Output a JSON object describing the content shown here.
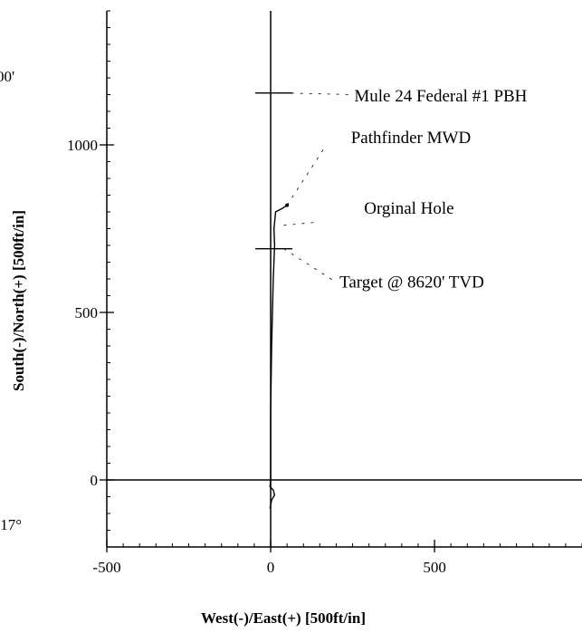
{
  "chart_data": {
    "type": "line",
    "title": "",
    "xlabel": "West(-)/East(+) [500ft/in]",
    "ylabel": "South(-)/North(+) [500ft/in]",
    "xlim": [
      -500,
      950
    ],
    "ylim": [
      -200,
      1400
    ],
    "x_ticks": [
      {
        "value": -500,
        "label": "-500"
      },
      {
        "value": 0,
        "label": "0"
      },
      {
        "value": 500,
        "label": "500"
      }
    ],
    "y_ticks": [
      {
        "value": 0,
        "label": "0"
      },
      {
        "value": 500,
        "label": "500"
      },
      {
        "value": 1000,
        "label": "1000"
      }
    ],
    "grid": false,
    "series": [
      {
        "name": "Orginal Hole",
        "color": "#000000",
        "points": [
          [
            -2,
            -85
          ],
          [
            3,
            -60
          ],
          [
            12,
            -45
          ],
          [
            8,
            -30
          ],
          [
            -2,
            -20
          ],
          [
            0,
            0
          ],
          [
            0,
            200
          ],
          [
            3,
            400
          ],
          [
            8,
            600
          ],
          [
            12,
            700
          ],
          [
            10,
            750
          ],
          [
            15,
            800
          ],
          [
            35,
            810
          ],
          [
            50,
            820
          ]
        ]
      }
    ],
    "markers": [
      {
        "label": "Mule 24 Federal #1 PBH",
        "x": 0,
        "y": 1155
      },
      {
        "label": "Target @ 8620' TVD",
        "x": 0,
        "y": 690
      }
    ],
    "annotations": [
      {
        "text": "Mule 24 Federal #1 PBH",
        "x": 255,
        "y": 1130
      },
      {
        "text": "Pathfinder MWD",
        "x": 245,
        "y": 1005
      },
      {
        "text": "Orginal Hole",
        "x": 285,
        "y": 795
      },
      {
        "text": "Target @ 8620' TVD",
        "x": 210,
        "y": 575
      }
    ],
    "clipped_labels": [
      "00'",
      ".17°"
    ]
  }
}
